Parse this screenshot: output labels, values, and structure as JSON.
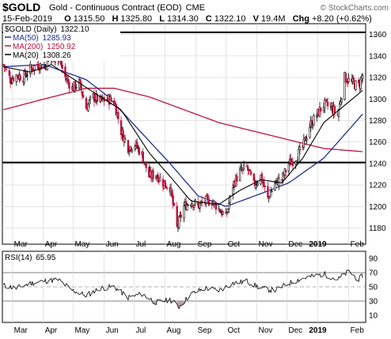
{
  "chart_data": [
    {
      "type": "candlestick",
      "symbol": "$GOLD",
      "title": "Gold - Continuous Contract (EOD)",
      "exchange": "CME",
      "watermark": "© StockCharts.com",
      "quote": {
        "date": "15-Feb-2019",
        "open_label": "O",
        "open": "1315.50",
        "high_label": "H",
        "high": "1325.80",
        "low_label": "L",
        "low": "1314.30",
        "close_label": "C",
        "close": "1322.10",
        "volume_label": "V",
        "volume": "19.4M",
        "change_label": "Chg",
        "change": "+8.20 (+0.62%)"
      },
      "legend": [
        {
          "label": "$GOLD (Daily)",
          "value": "1322.10",
          "color": "#000000"
        },
        {
          "label": "MA(50)",
          "value": "1285.93",
          "color": "#1f2f8f"
        },
        {
          "label": "MA(200)",
          "value": "1250.92",
          "color": "#c0103a"
        },
        {
          "label": "MA(20)",
          "value": "1308.26",
          "color": "#000000"
        }
      ],
      "ylim": [
        1165,
        1370
      ],
      "y_ticks": [
        1180,
        1200,
        1220,
        1240,
        1260,
        1280,
        1300,
        1320,
        1340,
        1360
      ],
      "x_labels": [
        "Mar",
        "Apr",
        "May",
        "Jun",
        "Jul",
        "Aug",
        "Sep",
        "Oct",
        "Nov",
        "Dec",
        "2019",
        "Feb"
      ],
      "horizontal_lines": [
        1362,
        1241
      ],
      "price_path": [
        [
          "2018-02-20",
          1332
        ],
        [
          "2018-02-27",
          1318
        ],
        [
          "2018-03-05",
          1322
        ],
        [
          "2018-03-12",
          1320
        ],
        [
          "2018-03-19",
          1328
        ],
        [
          "2018-03-26",
          1332
        ],
        [
          "2018-04-02",
          1330
        ],
        [
          "2018-04-09",
          1338
        ],
        [
          "2018-04-16",
          1340
        ],
        [
          "2018-04-23",
          1320
        ],
        [
          "2018-04-30",
          1310
        ],
        [
          "2018-05-07",
          1315
        ],
        [
          "2018-05-14",
          1292
        ],
        [
          "2018-05-21",
          1302
        ],
        [
          "2018-05-28",
          1298
        ],
        [
          "2018-06-04",
          1300
        ],
        [
          "2018-06-11",
          1298
        ],
        [
          "2018-06-18",
          1270
        ],
        [
          "2018-06-25",
          1255
        ],
        [
          "2018-07-02",
          1258
        ],
        [
          "2018-07-09",
          1248
        ],
        [
          "2018-07-16",
          1228
        ],
        [
          "2018-07-23",
          1230
        ],
        [
          "2018-07-30",
          1222
        ],
        [
          "2018-08-06",
          1218
        ],
        [
          "2018-08-13",
          1180
        ],
        [
          "2018-08-20",
          1200
        ],
        [
          "2018-08-27",
          1205
        ],
        [
          "2018-09-03",
          1200
        ],
        [
          "2018-09-10",
          1205
        ],
        [
          "2018-09-17",
          1205
        ],
        [
          "2018-09-24",
          1198
        ],
        [
          "2018-10-01",
          1190
        ],
        [
          "2018-10-08",
          1220
        ],
        [
          "2018-10-15",
          1232
        ],
        [
          "2018-10-22",
          1236
        ],
        [
          "2018-10-29",
          1220
        ],
        [
          "2018-11-05",
          1228
        ],
        [
          "2018-11-12",
          1207
        ],
        [
          "2018-11-19",
          1222
        ],
        [
          "2018-11-26",
          1225
        ],
        [
          "2018-12-03",
          1240
        ],
        [
          "2018-12-10",
          1245
        ],
        [
          "2018-12-17",
          1255
        ],
        [
          "2018-12-24",
          1275
        ],
        [
          "2018-12-31",
          1285
        ],
        [
          "2019-01-07",
          1295
        ],
        [
          "2019-01-14",
          1292
        ],
        [
          "2019-01-21",
          1285
        ],
        [
          "2019-01-28",
          1320
        ],
        [
          "2019-02-04",
          1315
        ],
        [
          "2019-02-11",
          1312
        ],
        [
          "2019-02-15",
          1322
        ]
      ],
      "ma50_path": [
        [
          "2018-02-20",
          1330
        ],
        [
          "2018-04-02",
          1332
        ],
        [
          "2018-05-14",
          1318
        ],
        [
          "2018-06-04",
          1303
        ],
        [
          "2018-07-02",
          1275
        ],
        [
          "2018-08-06",
          1240
        ],
        [
          "2018-09-03",
          1210
        ],
        [
          "2018-10-01",
          1200
        ],
        [
          "2018-11-05",
          1212
        ],
        [
          "2018-12-03",
          1222
        ],
        [
          "2019-01-07",
          1245
        ],
        [
          "2019-02-15",
          1286
        ]
      ],
      "ma200_path": [
        [
          "2018-02-20",
          1290
        ],
        [
          "2018-04-02",
          1300
        ],
        [
          "2018-05-14",
          1310
        ],
        [
          "2018-06-11",
          1310
        ],
        [
          "2018-07-16",
          1302
        ],
        [
          "2018-08-20",
          1290
        ],
        [
          "2018-09-24",
          1278
        ],
        [
          "2018-10-29",
          1270
        ],
        [
          "2018-12-03",
          1262
        ],
        [
          "2019-01-07",
          1254
        ],
        [
          "2019-02-15",
          1251
        ]
      ],
      "ma20_path": [
        [
          "2018-02-20",
          1330
        ],
        [
          "2018-03-19",
          1325
        ],
        [
          "2018-04-09",
          1332
        ],
        [
          "2018-05-07",
          1315
        ],
        [
          "2018-05-28",
          1302
        ],
        [
          "2018-06-18",
          1290
        ],
        [
          "2018-07-16",
          1250
        ],
        [
          "2018-08-06",
          1228
        ],
        [
          "2018-08-27",
          1205
        ],
        [
          "2018-09-24",
          1202
        ],
        [
          "2018-10-15",
          1215
        ],
        [
          "2018-11-05",
          1225
        ],
        [
          "2018-11-26",
          1222
        ],
        [
          "2018-12-17",
          1245
        ],
        [
          "2019-01-07",
          1278
        ],
        [
          "2019-02-15",
          1308
        ]
      ]
    },
    {
      "type": "line",
      "title": "RSI(14)",
      "value": "65.95",
      "ylim": [
        0,
        100
      ],
      "y_ticks": [
        10,
        30,
        50,
        70,
        90
      ],
      "reference_lines": [
        70,
        30
      ],
      "midline": 50,
      "x_labels": [
        "Mar",
        "Apr",
        "May",
        "Jun",
        "Jul",
        "Aug",
        "Sep",
        "Oct",
        "Nov",
        "Dec",
        "2019",
        "Feb"
      ],
      "rsi_path": [
        [
          "2018-02-20",
          52
        ],
        [
          "2018-03-05",
          48
        ],
        [
          "2018-03-19",
          55
        ],
        [
          "2018-04-02",
          58
        ],
        [
          "2018-04-16",
          60
        ],
        [
          "2018-04-30",
          45
        ],
        [
          "2018-05-14",
          38
        ],
        [
          "2018-05-28",
          48
        ],
        [
          "2018-06-11",
          50
        ],
        [
          "2018-06-25",
          35
        ],
        [
          "2018-07-09",
          40
        ],
        [
          "2018-07-23",
          28
        ],
        [
          "2018-08-06",
          32
        ],
        [
          "2018-08-15",
          22
        ],
        [
          "2018-08-27",
          40
        ],
        [
          "2018-09-10",
          48
        ],
        [
          "2018-09-24",
          45
        ],
        [
          "2018-10-08",
          55
        ],
        [
          "2018-10-22",
          58
        ],
        [
          "2018-11-05",
          48
        ],
        [
          "2018-11-19",
          45
        ],
        [
          "2018-12-03",
          55
        ],
        [
          "2018-12-17",
          62
        ],
        [
          "2019-01-07",
          68
        ],
        [
          "2019-01-21",
          60
        ],
        [
          "2019-02-01",
          72
        ],
        [
          "2019-02-11",
          60
        ],
        [
          "2019-02-15",
          66
        ]
      ]
    }
  ]
}
